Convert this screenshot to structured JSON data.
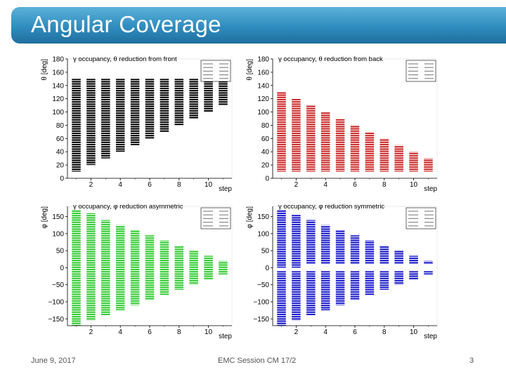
{
  "slide": {
    "title": "Angular Coverage",
    "footer_date": "June 9, 2017",
    "footer_session": "EMC Session CM 17/2",
    "page_number": "3"
  },
  "chart_data": [
    {
      "type": "bar",
      "title": "γ occupancy, θ reduction from front",
      "xlabel": "step",
      "ylabel": "θ [deg]",
      "xlim": [
        0.4,
        11.6
      ],
      "ylim": [
        0,
        180
      ],
      "xticks": [
        2,
        4,
        6,
        8,
        10
      ],
      "yticks": [
        0,
        20,
        40,
        60,
        80,
        100,
        120,
        140,
        160,
        180
      ],
      "color": "#000000",
      "legend": "top-right",
      "series": [
        {
          "x": 1,
          "low": 10,
          "high": 150
        },
        {
          "x": 2,
          "low": 20,
          "high": 150
        },
        {
          "x": 3,
          "low": 30,
          "high": 150
        },
        {
          "x": 4,
          "low": 40,
          "high": 150
        },
        {
          "x": 5,
          "low": 50,
          "high": 150
        },
        {
          "x": 6,
          "low": 60,
          "high": 150
        },
        {
          "x": 7,
          "low": 70,
          "high": 150
        },
        {
          "x": 8,
          "low": 80,
          "high": 150
        },
        {
          "x": 9,
          "low": 90,
          "high": 150
        },
        {
          "x": 10,
          "low": 100,
          "high": 150
        },
        {
          "x": 11,
          "low": 110,
          "high": 150
        }
      ]
    },
    {
      "type": "bar",
      "title": "γ occupancy, θ reduction from back",
      "xlabel": "step",
      "ylabel": "θ [deg]",
      "xlim": [
        0.4,
        11.6
      ],
      "ylim": [
        0,
        180
      ],
      "xticks": [
        2,
        4,
        6,
        8,
        10
      ],
      "yticks": [
        0,
        20,
        40,
        60,
        80,
        100,
        120,
        140,
        160,
        180
      ],
      "color": "#cc2a2a",
      "legend": "top-right",
      "series": [
        {
          "x": 1,
          "low": 10,
          "high": 130
        },
        {
          "x": 2,
          "low": 10,
          "high": 120
        },
        {
          "x": 3,
          "low": 10,
          "high": 110
        },
        {
          "x": 4,
          "low": 10,
          "high": 100
        },
        {
          "x": 5,
          "low": 10,
          "high": 90
        },
        {
          "x": 6,
          "low": 10,
          "high": 80
        },
        {
          "x": 7,
          "low": 10,
          "high": 70
        },
        {
          "x": 8,
          "low": 10,
          "high": 60
        },
        {
          "x": 9,
          "low": 10,
          "high": 50
        },
        {
          "x": 10,
          "low": 10,
          "high": 40
        },
        {
          "x": 11,
          "low": 10,
          "high": 30
        }
      ]
    },
    {
      "type": "bar",
      "title": "γ occupancy, φ reduction asymmetric",
      "xlabel": "step",
      "ylabel": "φ [deg]",
      "xlim": [
        0.4,
        11.6
      ],
      "ylim": [
        -170,
        180
      ],
      "xticks": [
        2,
        4,
        6,
        8,
        10
      ],
      "yticks": [
        -150,
        -100,
        -50,
        0,
        50,
        100,
        150
      ],
      "color": "#33cc33",
      "legend": "top-right",
      "series": [
        {
          "x": 1,
          "low": -170,
          "high": 170
        },
        {
          "x": 2,
          "low": -155,
          "high": 160
        },
        {
          "x": 3,
          "low": -140,
          "high": 140
        },
        {
          "x": 4,
          "low": -125,
          "high": 125
        },
        {
          "x": 5,
          "low": -110,
          "high": 110
        },
        {
          "x": 6,
          "low": -95,
          "high": 95
        },
        {
          "x": 7,
          "low": -80,
          "high": 80
        },
        {
          "x": 8,
          "low": -65,
          "high": 65
        },
        {
          "x": 9,
          "low": -50,
          "high": 50
        },
        {
          "x": 10,
          "low": -35,
          "high": 35
        },
        {
          "x": 11,
          "low": -20,
          "high": 20
        }
      ]
    },
    {
      "type": "bar",
      "title": "γ occupancy, φ reduction symmetric",
      "xlabel": "step",
      "ylabel": "φ [deg]",
      "xlim": [
        0.4,
        11.6
      ],
      "ylim": [
        -170,
        180
      ],
      "xticks": [
        2,
        4,
        6,
        8,
        10
      ],
      "yticks": [
        -150,
        -100,
        -50,
        0,
        50,
        100,
        150
      ],
      "color": "#1a1acc",
      "legend": "top-right",
      "series": [
        {
          "x": 1,
          "low": 0,
          "high": 170
        },
        {
          "x": 2,
          "low": 0,
          "high": 155
        },
        {
          "x": 3,
          "low": 10,
          "high": 140
        },
        {
          "x": 4,
          "low": 10,
          "high": 125
        },
        {
          "x": 5,
          "low": 10,
          "high": 110
        },
        {
          "x": 6,
          "low": 10,
          "high": 95
        },
        {
          "x": 7,
          "low": 10,
          "high": 80
        },
        {
          "x": 8,
          "low": 10,
          "high": 65
        },
        {
          "x": 9,
          "low": 10,
          "high": 50
        },
        {
          "x": 10,
          "low": 10,
          "high": 35
        },
        {
          "x": 11,
          "low": 10,
          "high": 20
        },
        {
          "x": 1,
          "low": -170,
          "high": -10
        },
        {
          "x": 2,
          "low": -155,
          "high": -10
        },
        {
          "x": 3,
          "low": -140,
          "high": -10
        },
        {
          "x": 4,
          "low": -125,
          "high": -10
        },
        {
          "x": 5,
          "low": -110,
          "high": -10
        },
        {
          "x": 6,
          "low": -95,
          "high": -10
        },
        {
          "x": 7,
          "low": -80,
          "high": -10
        },
        {
          "x": 8,
          "low": -65,
          "high": -10
        },
        {
          "x": 9,
          "low": -50,
          "high": -10
        },
        {
          "x": 10,
          "low": -35,
          "high": -10
        },
        {
          "x": 11,
          "low": -20,
          "high": -10
        }
      ]
    }
  ]
}
